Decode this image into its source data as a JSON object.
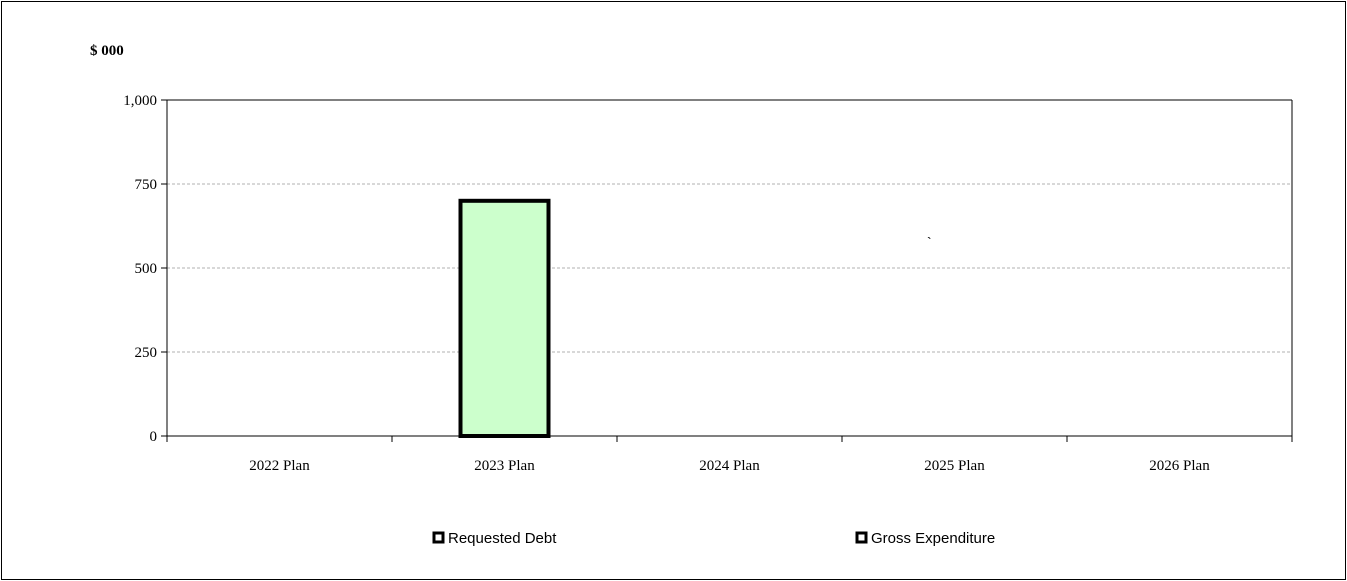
{
  "chart_data": {
    "type": "bar",
    "ylabel": "$ 000",
    "categories": [
      "2022 Plan",
      "2023 Plan",
      "2024 Plan",
      "2025 Plan",
      "2026 Plan"
    ],
    "series": [
      {
        "name": "Requested Debt",
        "values": [
          0,
          0,
          0,
          0,
          0
        ]
      },
      {
        "name": "Gross Expenditure",
        "values": [
          0,
          700,
          0,
          0,
          0
        ]
      }
    ],
    "ylim": [
      0,
      1000
    ],
    "yticks": [
      0,
      250,
      500,
      750,
      1000
    ],
    "ytick_labels": [
      "0",
      "250",
      "500",
      "750",
      "1,000"
    ],
    "grid": true,
    "legend_position": "bottom",
    "annotation": "`",
    "colors": {
      "bar_fill": "#ccffcc",
      "bar_stroke": "#000000",
      "grid": "#b0b0b0",
      "axis": "#000000"
    }
  }
}
